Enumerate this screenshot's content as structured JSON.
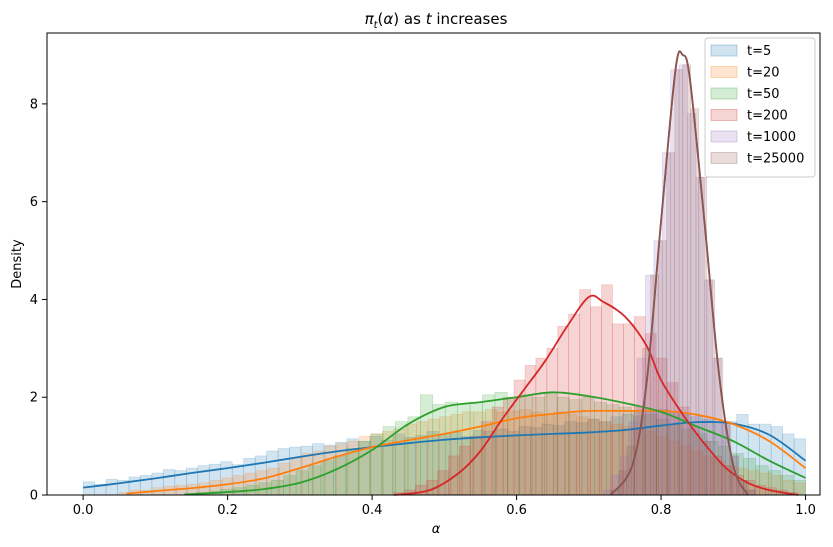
{
  "chart_data": {
    "type": "histogram_kde",
    "title": "π_t(α) as t increases",
    "xlabel": "α",
    "ylabel": "Density",
    "xlim": [
      -0.05,
      1.02
    ],
    "ylim": [
      0,
      9.45
    ],
    "x_ticks": [
      "0.0",
      "0.2",
      "0.4",
      "0.6",
      "0.8",
      "1.0"
    ],
    "x_tick_values": [
      0.0,
      0.2,
      0.4,
      0.6,
      0.8,
      1.0
    ],
    "y_ticks": [
      "0",
      "2",
      "4",
      "6",
      "8"
    ],
    "y_tick_values": [
      0,
      2,
      4,
      6,
      8
    ],
    "grid": false,
    "legend_position": "top-right",
    "series": [
      {
        "name": "t=5",
        "color": "#1f77b4",
        "hist_start": 0.0,
        "hist_end": 1.0,
        "hist_values": [
          0.27,
          0.22,
          0.32,
          0.3,
          0.37,
          0.4,
          0.45,
          0.52,
          0.5,
          0.55,
          0.6,
          0.63,
          0.68,
          0.62,
          0.75,
          0.8,
          0.9,
          0.95,
          0.98,
          1.0,
          1.05,
          1.02,
          1.08,
          1.15,
          1.1,
          1.2,
          1.12,
          1.25,
          1.18,
          1.22,
          1.3,
          1.25,
          1.28,
          1.2,
          1.32,
          1.3,
          1.35,
          1.3,
          1.4,
          1.38,
          1.45,
          1.42,
          1.5,
          1.48,
          1.55,
          1.5,
          1.6,
          1.65,
          1.62,
          1.7,
          1.75,
          1.7,
          1.65,
          1.6,
          1.55,
          1.5,
          1.5,
          1.65,
          1.45,
          1.45,
          1.4,
          1.25,
          1.15
        ],
        "kde": [
          [
            0.0,
            0.15
          ],
          [
            0.05,
            0.24
          ],
          [
            0.1,
            0.34
          ],
          [
            0.15,
            0.45
          ],
          [
            0.2,
            0.55
          ],
          [
            0.25,
            0.66
          ],
          [
            0.3,
            0.78
          ],
          [
            0.35,
            0.89
          ],
          [
            0.4,
            0.98
          ],
          [
            0.45,
            1.06
          ],
          [
            0.5,
            1.13
          ],
          [
            0.55,
            1.18
          ],
          [
            0.6,
            1.22
          ],
          [
            0.65,
            1.25
          ],
          [
            0.7,
            1.28
          ],
          [
            0.75,
            1.33
          ],
          [
            0.8,
            1.42
          ],
          [
            0.85,
            1.49
          ],
          [
            0.9,
            1.46
          ],
          [
            0.95,
            1.23
          ],
          [
            1.0,
            0.7
          ]
        ]
      },
      {
        "name": "t=20",
        "color": "#ff7f0e",
        "hist_start": 0.05,
        "hist_end": 1.0,
        "hist_values": [
          0.05,
          0.1,
          0.1,
          0.15,
          0.18,
          0.2,
          0.22,
          0.25,
          0.3,
          0.35,
          0.4,
          0.45,
          0.5,
          0.55,
          0.65,
          0.75,
          0.85,
          0.9,
          1.0,
          1.05,
          1.1,
          1.2,
          1.25,
          1.3,
          1.35,
          1.45,
          1.5,
          1.55,
          1.6,
          1.65,
          1.7,
          1.7,
          1.75,
          1.7,
          1.72,
          1.75,
          1.7,
          1.65,
          1.7,
          1.65,
          1.6,
          1.55,
          1.5,
          1.45,
          1.4,
          1.35,
          1.3,
          1.2,
          1.1,
          1.0,
          0.9,
          0.8,
          0.7,
          0.6,
          0.55,
          0.5,
          0.45,
          0.4,
          0.3,
          0.25
        ],
        "kde": [
          [
            0.06,
            0.03
          ],
          [
            0.1,
            0.08
          ],
          [
            0.15,
            0.14
          ],
          [
            0.2,
            0.22
          ],
          [
            0.25,
            0.34
          ],
          [
            0.3,
            0.55
          ],
          [
            0.35,
            0.78
          ],
          [
            0.4,
            0.98
          ],
          [
            0.45,
            1.12
          ],
          [
            0.5,
            1.25
          ],
          [
            0.55,
            1.4
          ],
          [
            0.6,
            1.57
          ],
          [
            0.65,
            1.66
          ],
          [
            0.7,
            1.72
          ],
          [
            0.75,
            1.72
          ],
          [
            0.8,
            1.72
          ],
          [
            0.85,
            1.64
          ],
          [
            0.9,
            1.45
          ],
          [
            0.95,
            1.1
          ],
          [
            1.0,
            0.55
          ]
        ]
      },
      {
        "name": "t=50",
        "color": "#2ca02c",
        "hist_start": 0.14,
        "hist_end": 1.0,
        "hist_values": [
          0.02,
          0.05,
          0.08,
          0.12,
          0.15,
          0.2,
          0.25,
          0.3,
          0.4,
          0.5,
          0.6,
          0.7,
          0.8,
          0.95,
          1.1,
          1.25,
          1.4,
          1.5,
          1.6,
          2.05,
          1.85,
          1.9,
          1.85,
          1.9,
          2.05,
          2.1,
          2.0,
          2.05,
          2.0,
          2.1,
          2.0,
          1.95,
          2.0,
          1.9,
          1.85,
          1.8,
          1.7,
          1.65,
          1.55,
          1.45,
          1.35,
          1.25,
          1.1,
          1.0,
          0.85,
          0.75,
          0.6,
          0.5,
          0.4,
          0.3
        ],
        "kde": [
          [
            0.14,
            0.01
          ],
          [
            0.2,
            0.06
          ],
          [
            0.25,
            0.12
          ],
          [
            0.3,
            0.25
          ],
          [
            0.35,
            0.52
          ],
          [
            0.4,
            0.92
          ],
          [
            0.45,
            1.45
          ],
          [
            0.5,
            1.8
          ],
          [
            0.55,
            1.9
          ],
          [
            0.6,
            2.0
          ],
          [
            0.65,
            2.1
          ],
          [
            0.7,
            2.02
          ],
          [
            0.75,
            1.88
          ],
          [
            0.8,
            1.7
          ],
          [
            0.85,
            1.4
          ],
          [
            0.9,
            1.1
          ],
          [
            0.95,
            0.7
          ],
          [
            1.0,
            0.35
          ]
        ]
      },
      {
        "name": "t=200",
        "color": "#d62728",
        "hist_start": 0.43,
        "hist_end": 0.99,
        "hist_values": [
          0.05,
          0.1,
          0.2,
          0.3,
          0.5,
          0.8,
          1.0,
          1.2,
          1.5,
          1.8,
          2.0,
          2.35,
          2.65,
          2.8,
          3.0,
          3.45,
          3.7,
          4.2,
          3.85,
          4.3,
          3.5,
          3.5,
          3.65,
          3.3,
          2.8,
          2.3,
          1.8,
          1.4,
          1.1,
          0.8,
          0.6,
          0.4,
          0.3,
          0.2,
          0.15,
          0.1,
          0.05
        ],
        "kde": [
          [
            0.43,
            0.0
          ],
          [
            0.48,
            0.1
          ],
          [
            0.52,
            0.45
          ],
          [
            0.55,
            0.9
          ],
          [
            0.58,
            1.55
          ],
          [
            0.61,
            2.15
          ],
          [
            0.64,
            2.75
          ],
          [
            0.67,
            3.45
          ],
          [
            0.7,
            4.05
          ],
          [
            0.72,
            3.95
          ],
          [
            0.75,
            3.65
          ],
          [
            0.78,
            3.05
          ],
          [
            0.8,
            2.35
          ],
          [
            0.83,
            1.65
          ],
          [
            0.86,
            1.05
          ],
          [
            0.89,
            0.55
          ],
          [
            0.92,
            0.25
          ],
          [
            0.95,
            0.1
          ],
          [
            0.99,
            0.0
          ]
        ]
      },
      {
        "name": "t=1000",
        "color": "#9467bd",
        "hist_start": 0.72,
        "hist_end": 0.93,
        "hist_values": [
          0.1,
          0.4,
          0.8,
          1.5,
          2.8,
          4.5,
          5.2,
          7.0,
          8.7,
          8.8,
          7.8,
          6.5,
          4.4,
          2.8,
          1.5,
          0.8,
          0.3,
          0.1
        ],
        "kde": [
          [
            0.73,
            0.0
          ],
          [
            0.76,
            0.6
          ],
          [
            0.78,
            2.3
          ],
          [
            0.8,
            5.6
          ],
          [
            0.82,
            8.7
          ],
          [
            0.83,
            9.0
          ],
          [
            0.84,
            8.5
          ],
          [
            0.86,
            5.6
          ],
          [
            0.88,
            2.5
          ],
          [
            0.9,
            0.6
          ],
          [
            0.92,
            0.0
          ]
        ]
      },
      {
        "name": "t=25000",
        "color": "#8c564b",
        "hist_start": 0.73,
        "hist_end": 0.93,
        "hist_values": [
          0.1,
          0.5,
          1.0,
          1.8,
          3.0,
          4.5,
          5.2,
          7.0,
          8.7,
          8.8,
          7.9,
          6.5,
          4.4,
          2.8,
          1.5,
          0.8,
          0.3,
          0.1
        ],
        "kde": [
          [
            0.73,
            0.0
          ],
          [
            0.76,
            0.6
          ],
          [
            0.78,
            2.3
          ],
          [
            0.8,
            5.6
          ],
          [
            0.82,
            8.7
          ],
          [
            0.83,
            9.0
          ],
          [
            0.84,
            8.5
          ],
          [
            0.86,
            5.6
          ],
          [
            0.88,
            2.5
          ],
          [
            0.9,
            0.6
          ],
          [
            0.92,
            0.0
          ]
        ]
      }
    ]
  }
}
